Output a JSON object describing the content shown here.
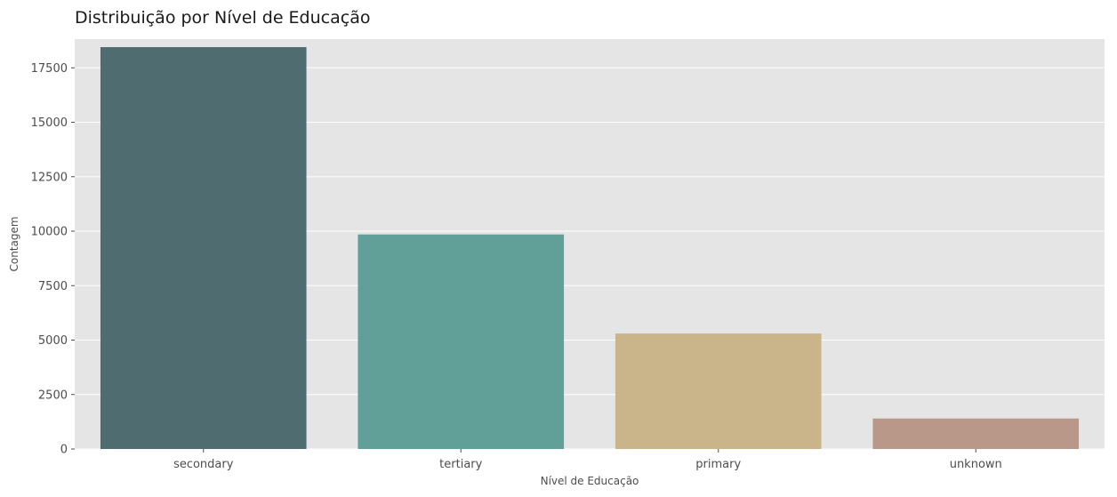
{
  "chart_data": {
    "type": "bar",
    "title": "Distribuição por Nível de Educação",
    "xlabel": "Nível de Educação",
    "ylabel": "Contagem",
    "categories": [
      "secondary",
      "tertiary",
      "primary",
      "unknown"
    ],
    "values": [
      18450,
      9850,
      5300,
      1400
    ],
    "colors": [
      "#4f6d70",
      "#61a098",
      "#cab48a",
      "#b9988a"
    ],
    "ylim": [
      0,
      18450
    ],
    "yticks": [
      0,
      2500,
      5000,
      7500,
      10000,
      12500,
      15000,
      17500
    ],
    "ytick_labels": [
      "0",
      "2500",
      "5000",
      "7500",
      "10000",
      "12500",
      "15000",
      "17500"
    ],
    "grid": true,
    "background": "#e5e5e5",
    "grid_color": "#ffffff"
  }
}
